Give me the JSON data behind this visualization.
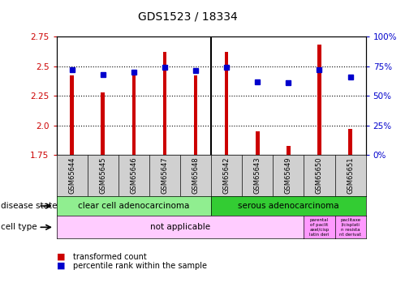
{
  "title": "GDS1523 / 18334",
  "samples": [
    "GSM65644",
    "GSM65645",
    "GSM65646",
    "GSM65647",
    "GSM65648",
    "GSM65642",
    "GSM65643",
    "GSM65649",
    "GSM65650",
    "GSM65651"
  ],
  "transformed_counts": [
    2.42,
    2.28,
    2.42,
    2.62,
    2.42,
    2.62,
    1.95,
    1.83,
    2.68,
    1.97
  ],
  "percentile_ranks": [
    72,
    68,
    70,
    74,
    71,
    74,
    62,
    61,
    72,
    66
  ],
  "ylim": [
    1.75,
    2.75
  ],
  "y_ticks": [
    1.75,
    2.0,
    2.25,
    2.5,
    2.75
  ],
  "right_ylim": [
    0,
    100
  ],
  "right_yticks": [
    0,
    25,
    50,
    75,
    100
  ],
  "right_yticklabels": [
    "0%",
    "25%",
    "50%",
    "75%",
    "100%"
  ],
  "bar_color": "#cc0000",
  "square_color": "#0000cc",
  "bar_baseline": 1.75,
  "plot_bg_color": "#ffffff",
  "left_label_color": "#cc0000",
  "right_label_color": "#0000cc",
  "ds_color1": "#90ee90",
  "ds_color2": "#33cc33",
  "ct_main_color": "#ffccff",
  "ct_special_color": "#ff99ff",
  "ds_label1": "clear cell adenocarcinoma",
  "ds_label2": "serous adenocarcinoma",
  "ct_main_label": "not applicable",
  "ct_sp1": "parental\nof paclit\naxel/cisp\nlatin deri",
  "ct_sp2": "paclitaxe\nl/cisplati\nn resista\nnt derivat"
}
